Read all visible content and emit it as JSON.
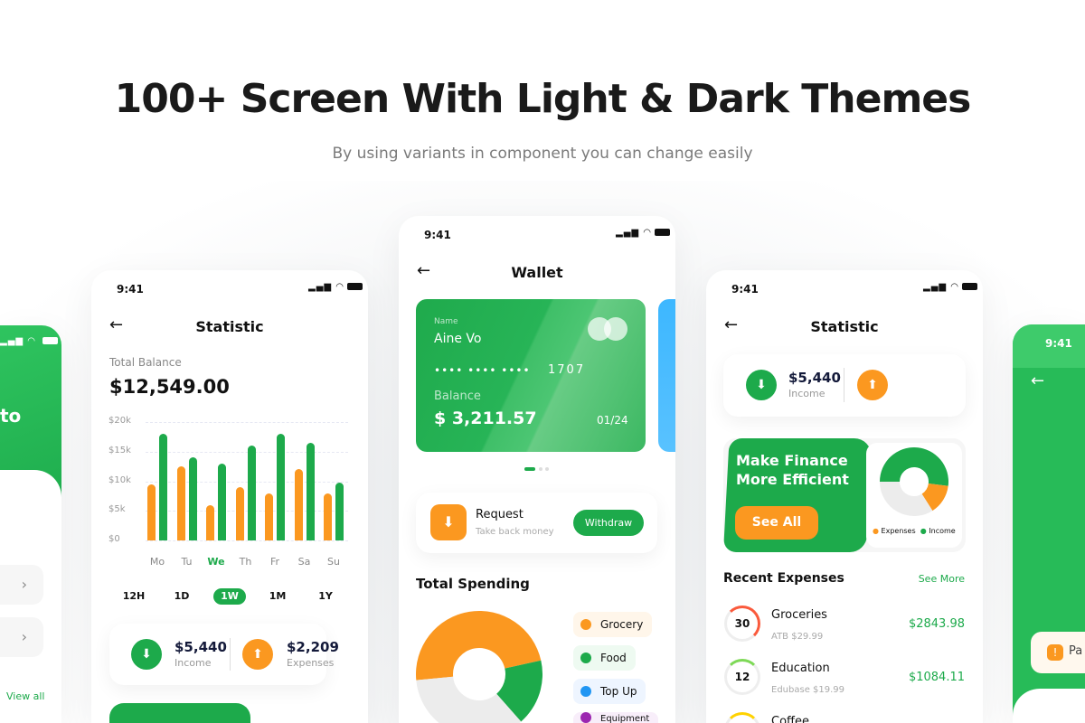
{
  "hero": {
    "title": "100+ Screen With Light & Dark Themes",
    "subtitle": "By using variants in component you can change easily"
  },
  "colors": {
    "green": "#1daa4b",
    "orange": "#fb9820",
    "blue": "#2196f3",
    "purple": "#9c27b0",
    "grey": "#ececec"
  },
  "status": {
    "time": "9:41"
  },
  "left_phone": {
    "heading_fragment": "to",
    "view_all": "View all"
  },
  "statistic_phone": {
    "title": "Statistic",
    "balance_label": "Total Balance",
    "balance": "$12,549.00",
    "chart_data": {
      "type": "bar",
      "categories": [
        "Mo",
        "Tu",
        "We",
        "Th",
        "Fr",
        "Sa",
        "Su"
      ],
      "highlighted": "We",
      "yticks": [
        "$20k",
        "$15k",
        "$10k",
        "$5k",
        "$0"
      ],
      "ylim": [
        0,
        20000
      ],
      "grid": true,
      "series": [
        {
          "color": "#fb9820",
          "values": [
            9500,
            12500,
            6000,
            9000,
            8000,
            12000,
            8000
          ]
        },
        {
          "color": "#1daa4b",
          "values": [
            18000,
            14000,
            13000,
            16000,
            18000,
            16500,
            9700
          ]
        }
      ]
    },
    "periods": [
      "12H",
      "1D",
      "1W",
      "1M",
      "1Y"
    ],
    "active_period": "1W",
    "income": {
      "amount": "$5,440",
      "label": "Income"
    },
    "expenses": {
      "amount": "$2,209",
      "label": "Expenses"
    }
  },
  "wallet_phone": {
    "title": "Wallet",
    "card": {
      "name_label": "Name",
      "name": "Aine Vo",
      "mask": "•••• •••• ••••",
      "last4": "1707",
      "balance_label": "Balance",
      "balance": "$ 3,211.57",
      "expiry": "01/24"
    },
    "request": {
      "title": "Request",
      "subtitle": "Take back money",
      "button": "Withdraw"
    },
    "spending_title": "Total Spending",
    "chart_data": {
      "type": "pie",
      "donut": true,
      "slices": [
        {
          "label": "Grocery",
          "value": 48,
          "color": "#fb9820"
        },
        {
          "label": "Food",
          "value": 17,
          "color": "#1daa4b"
        },
        {
          "label": "Top Up",
          "value": 0,
          "color": "#2196f3"
        },
        {
          "label": "Equipment",
          "value": 0,
          "color": "#9c27b0"
        },
        {
          "label": "",
          "value": 35,
          "color": "#ececec"
        }
      ]
    },
    "legend": [
      "Grocery",
      "Food",
      "Top Up",
      "Equipment"
    ]
  },
  "statistic2_phone": {
    "title": "Statistic",
    "income": {
      "amount": "$5,440",
      "label": "Income"
    },
    "expenses": [
      {
        "count": "30",
        "name": "Groceries",
        "sub": "ATB $29.99",
        "amount": "$2843.98",
        "color": "#fa5a3c"
      },
      {
        "count": "12",
        "name": "Education",
        "sub": "Edubase $19.99",
        "amount": "$1084.11",
        "color": "#7ed957"
      },
      {
        "count": "",
        "name": "Coffee",
        "sub": "",
        "amount": "",
        "color": "#ffd200"
      }
    ],
    "promo": {
      "title_line1": "Make Finance",
      "title_line2": "More Efficient",
      "button": "See All"
    },
    "chart_data": {
      "type": "pie",
      "donut": true,
      "slices": [
        {
          "label": "Income",
          "value": 52,
          "color": "#1daa4b"
        },
        {
          "label": "Expenses",
          "value": 14,
          "color": "#fb9820"
        },
        {
          "label": "",
          "value": 34,
          "color": "#ececec"
        }
      ]
    },
    "legend": [
      "Expenses",
      "Income"
    ],
    "recent_title": "Recent Expenses",
    "see_more": "See More"
  },
  "right_phone": {
    "notice": "Pa"
  }
}
